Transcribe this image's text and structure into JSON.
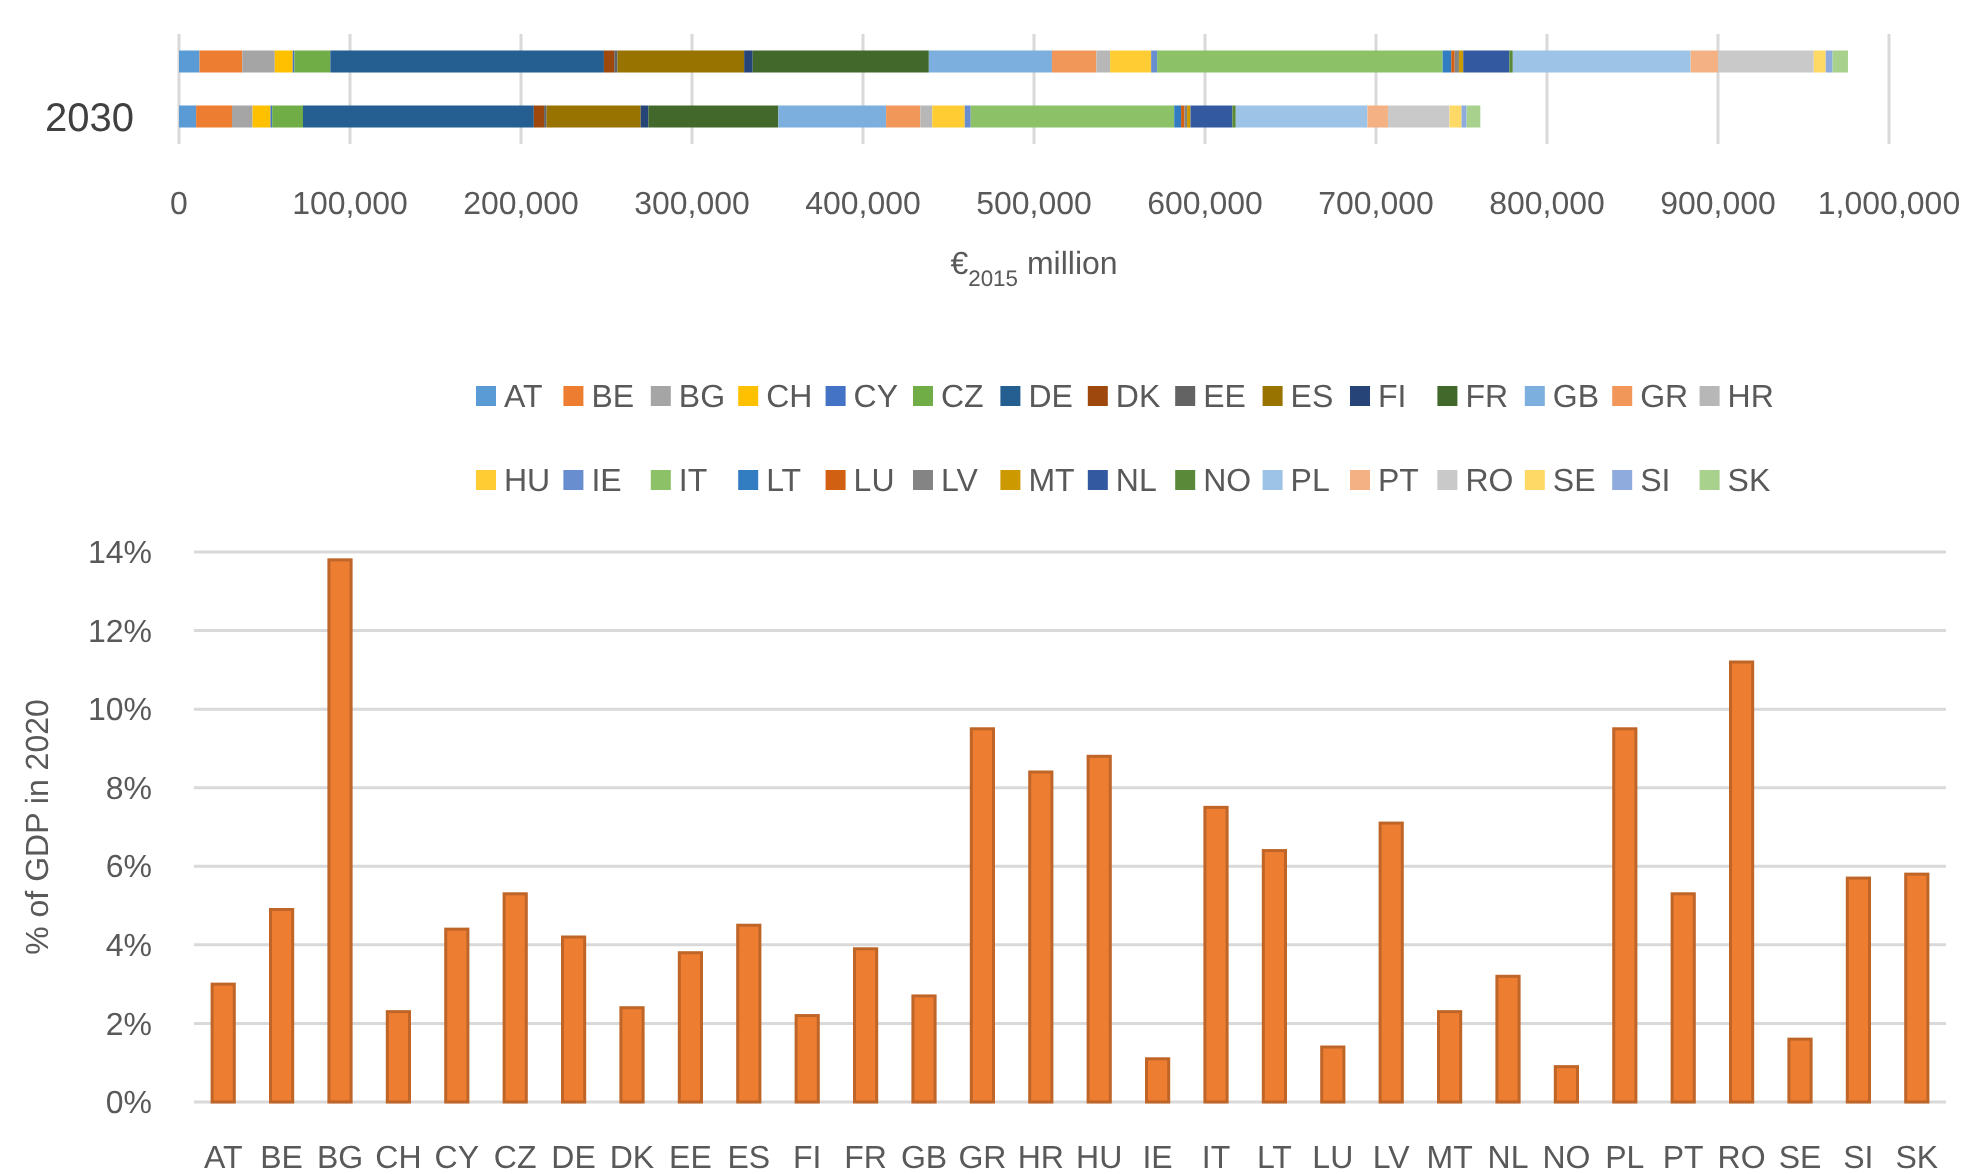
{
  "chart_data": [
    {
      "type": "bar",
      "orientation": "horizontal",
      "stacked": true,
      "xlabel": "€$_{2015}$ million",
      "categories": [
        null,
        "2030"
      ],
      "xlim": [
        0,
        1000000
      ],
      "xticks": [
        0,
        {
          "value": 100000,
          "label": "100,000"
        },
        {
          "value": 200000,
          "label": "200,000"
        },
        {
          "value": 300000,
          "label": "300,000"
        },
        {
          "value": 400000,
          "label": "400,000"
        },
        {
          "value": 500000,
          "label": "500,000"
        },
        {
          "value": 600000,
          "label": "600,000"
        },
        {
          "value": 700000,
          "label": "700,000"
        },
        {
          "value": 800000,
          "label": "800,000"
        },
        {
          "value": 900000,
          "label": "900,000"
        },
        {
          "value": 1000000,
          "label": "1,000,000"
        }
      ],
      "grid": "x",
      "legend": "bottom",
      "series": [
        {
          "name": "AT",
          "color": "#5b9bd5",
          "values": [
            12000,
            10000
          ]
        },
        {
          "name": "BE",
          "color": "#ed7d31",
          "values": [
            25000,
            21000
          ]
        },
        {
          "name": "BG",
          "color": "#a5a5a5",
          "values": [
            19000,
            12000
          ]
        },
        {
          "name": "CH",
          "color": "#ffc000",
          "values": [
            10500,
            10500
          ]
        },
        {
          "name": "CY",
          "color": "#4472c4",
          "values": [
            1000,
            1000
          ]
        },
        {
          "name": "CZ",
          "color": "#70ad47",
          "values": [
            21000,
            18000
          ]
        },
        {
          "name": "DE",
          "color": "#255e91",
          "values": [
            160000,
            135000
          ]
        },
        {
          "name": "DK",
          "color": "#9e480e",
          "values": [
            6000,
            6000
          ]
        },
        {
          "name": "EE",
          "color": "#636363",
          "values": [
            2000,
            1500
          ]
        },
        {
          "name": "ES",
          "color": "#997300",
          "values": [
            74000,
            55000
          ]
        },
        {
          "name": "FI",
          "color": "#264478",
          "values": [
            5000,
            4500
          ]
        },
        {
          "name": "FR",
          "color": "#43682b",
          "values": [
            103000,
            76000
          ]
        },
        {
          "name": "GB",
          "color": "#7cafdd",
          "values": [
            72000,
            63000
          ]
        },
        {
          "name": "GR",
          "color": "#f1975a",
          "values": [
            26000,
            20000
          ]
        },
        {
          "name": "HR",
          "color": "#b7b7b7",
          "values": [
            8000,
            7000
          ]
        },
        {
          "name": "HU",
          "color": "#ffcd33",
          "values": [
            24000,
            19000
          ]
        },
        {
          "name": "IE",
          "color": "#698ed0",
          "values": [
            3500,
            3500
          ]
        },
        {
          "name": "IT",
          "color": "#8cc168",
          "values": [
            167000,
            119000
          ]
        },
        {
          "name": "LT",
          "color": "#327dc2",
          "values": [
            5000,
            4000
          ]
        },
        {
          "name": "LU",
          "color": "#d26012",
          "values": [
            2000,
            2000
          ]
        },
        {
          "name": "LV",
          "color": "#848484",
          "values": [
            2500,
            1500
          ]
        },
        {
          "name": "MT",
          "color": "#cc9a00",
          "values": [
            2500,
            2000
          ]
        },
        {
          "name": "NL",
          "color": "#335aa1",
          "values": [
            27000,
            24500
          ]
        },
        {
          "name": "NO",
          "color": "#5a8a39",
          "values": [
            2000,
            2000
          ]
        },
        {
          "name": "PL",
          "color": "#9dc3e6",
          "values": [
            104000,
            77000
          ]
        },
        {
          "name": "PT",
          "color": "#f4b183",
          "values": [
            16000,
            12000
          ]
        },
        {
          "name": "RO",
          "color": "#c9c9c9",
          "values": [
            56000,
            36000
          ]
        },
        {
          "name": "SE",
          "color": "#ffd966",
          "values": [
            7000,
            7000
          ]
        },
        {
          "name": "SI",
          "color": "#8faadc",
          "values": [
            4000,
            3000
          ]
        },
        {
          "name": "SK",
          "color": "#a9d18e",
          "values": [
            9000,
            8000
          ]
        }
      ]
    },
    {
      "type": "bar",
      "ylabel": "% of GDP in 2020",
      "color": "#ed7d31",
      "grid": "y",
      "categories": [
        "AT",
        "BE",
        "BG",
        "CH",
        "CY",
        "CZ",
        "DE",
        "DK",
        "EE",
        "ES",
        "FI",
        "FR",
        "GB",
        "GR",
        "HR",
        "HU",
        "IE",
        "IT",
        "LT",
        "LU",
        "LV",
        "MT",
        "NL",
        "NO",
        "PL",
        "PT",
        "RO",
        "SE",
        "SI",
        "SK"
      ],
      "values": [
        3.0,
        4.9,
        13.8,
        2.3,
        4.4,
        5.3,
        4.2,
        2.4,
        3.8,
        4.5,
        2.2,
        3.9,
        2.7,
        9.5,
        8.4,
        8.8,
        1.1,
        7.5,
        6.4,
        1.4,
        7.1,
        2.3,
        3.2,
        0.9,
        9.5,
        5.3,
        11.2,
        1.6,
        5.7,
        5.8
      ],
      "ylim": [
        0,
        14
      ],
      "yticks": [
        {
          "value": 0,
          "label": "0%"
        },
        {
          "value": 2,
          "label": "2%"
        },
        {
          "value": 4,
          "label": "4%"
        },
        {
          "value": 6,
          "label": "6%"
        },
        {
          "value": 8,
          "label": "8%"
        },
        {
          "value": 10,
          "label": "10%"
        },
        {
          "value": 12,
          "label": "12%"
        },
        {
          "value": 14,
          "label": "14%"
        }
      ]
    }
  ]
}
